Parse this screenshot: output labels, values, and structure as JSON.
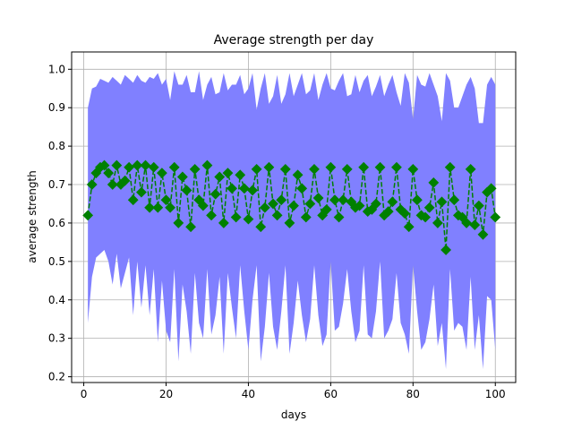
{
  "chart_data": {
    "type": "line",
    "title": "Average strength per day",
    "xlabel": "days",
    "ylabel": "average strength",
    "xlim": [
      -2.95,
      104.95
    ],
    "ylim": [
      0.185,
      1.045
    ],
    "xticks": [
      0,
      20,
      40,
      60,
      80,
      100
    ],
    "yticks": [
      0.2,
      0.3,
      0.4,
      0.5,
      0.6,
      0.7,
      0.8,
      0.9,
      1.0
    ],
    "xtick_labels": [
      "0",
      "20",
      "40",
      "60",
      "80",
      "100"
    ],
    "ytick_labels": [
      "0.2",
      "0.3",
      "0.4",
      "0.5",
      "0.6",
      "0.7",
      "0.8",
      "0.9",
      "1.0"
    ],
    "grid": true,
    "colors": {
      "band": "#8080ff",
      "line": "#008000",
      "marker": "#008000"
    },
    "x": [
      1,
      2,
      3,
      4,
      5,
      6,
      7,
      8,
      9,
      10,
      11,
      12,
      13,
      14,
      15,
      16,
      17,
      18,
      19,
      20,
      21,
      22,
      23,
      24,
      25,
      26,
      27,
      28,
      29,
      30,
      31,
      32,
      33,
      34,
      35,
      36,
      37,
      38,
      39,
      40,
      41,
      42,
      43,
      44,
      45,
      46,
      47,
      48,
      49,
      50,
      51,
      52,
      53,
      54,
      55,
      56,
      57,
      58,
      59,
      60,
      61,
      62,
      63,
      64,
      65,
      66,
      67,
      68,
      69,
      70,
      71,
      72,
      73,
      74,
      75,
      76,
      77,
      78,
      79,
      80,
      81,
      82,
      83,
      84,
      85,
      86,
      87,
      88,
      89,
      90,
      91,
      92,
      93,
      94,
      95,
      96,
      97,
      98,
      99,
      100
    ],
    "series": [
      {
        "style": "dashed-line-with-diamond-markers",
        "values": [
          0.62,
          0.7,
          0.73,
          0.745,
          0.75,
          0.73,
          0.7,
          0.75,
          0.7,
          0.71,
          0.745,
          0.66,
          0.75,
          0.68,
          0.75,
          0.64,
          0.745,
          0.64,
          0.73,
          0.66,
          0.64,
          0.745,
          0.6,
          0.72,
          0.685,
          0.59,
          0.74,
          0.66,
          0.645,
          0.75,
          0.62,
          0.675,
          0.72,
          0.6,
          0.73,
          0.69,
          0.615,
          0.725,
          0.69,
          0.61,
          0.685,
          0.74,
          0.59,
          0.64,
          0.745,
          0.65,
          0.62,
          0.66,
          0.74,
          0.6,
          0.645,
          0.725,
          0.69,
          0.615,
          0.65,
          0.74,
          0.665,
          0.62,
          0.635,
          0.745,
          0.66,
          0.615,
          0.66,
          0.74,
          0.655,
          0.64,
          0.645,
          0.745,
          0.63,
          0.635,
          0.65,
          0.745,
          0.62,
          0.63,
          0.655,
          0.745,
          0.635,
          0.625,
          0.59,
          0.74,
          0.66,
          0.62,
          0.615,
          0.64,
          0.705,
          0.6,
          0.655,
          0.53,
          0.745,
          0.66,
          0.62,
          0.615,
          0.6,
          0.74,
          0.595,
          0.645,
          0.57,
          0.68,
          0.69,
          0.615
        ]
      }
    ],
    "band": {
      "upper": [
        0.9,
        0.95,
        0.955,
        0.975,
        0.97,
        0.965,
        0.98,
        0.97,
        0.96,
        0.985,
        0.975,
        0.965,
        0.985,
        0.97,
        0.965,
        0.98,
        0.975,
        0.99,
        0.96,
        0.975,
        0.92,
        0.995,
        0.96,
        0.96,
        0.985,
        0.94,
        0.94,
        0.995,
        0.92,
        0.96,
        0.98,
        0.935,
        0.94,
        0.99,
        0.945,
        0.96,
        0.96,
        0.985,
        0.935,
        0.95,
        0.99,
        0.895,
        0.95,
        0.99,
        0.91,
        0.93,
        0.985,
        0.91,
        0.935,
        0.99,
        0.93,
        0.96,
        0.99,
        0.935,
        0.945,
        0.99,
        0.92,
        0.96,
        0.99,
        0.95,
        0.945,
        0.97,
        0.99,
        0.93,
        0.935,
        0.985,
        0.94,
        0.97,
        0.985,
        0.93,
        0.955,
        0.985,
        0.93,
        0.96,
        0.985,
        0.94,
        0.905,
        0.99,
        0.965,
        0.87,
        0.985,
        0.96,
        0.955,
        0.99,
        0.96,
        0.93,
        0.865,
        0.99,
        0.97,
        0.9,
        0.9,
        0.93,
        0.96,
        0.98,
        0.95,
        0.86,
        0.86,
        0.96,
        0.98,
        0.96
      ],
      "lower": [
        0.34,
        0.46,
        0.51,
        0.52,
        0.53,
        0.5,
        0.44,
        0.52,
        0.43,
        0.47,
        0.51,
        0.36,
        0.5,
        0.38,
        0.49,
        0.36,
        0.48,
        0.29,
        0.45,
        0.32,
        0.29,
        0.48,
        0.24,
        0.44,
        0.37,
        0.26,
        0.47,
        0.34,
        0.3,
        0.48,
        0.31,
        0.36,
        0.46,
        0.26,
        0.47,
        0.38,
        0.3,
        0.49,
        0.37,
        0.27,
        0.4,
        0.49,
        0.24,
        0.33,
        0.47,
        0.33,
        0.27,
        0.37,
        0.49,
        0.26,
        0.34,
        0.45,
        0.36,
        0.29,
        0.35,
        0.49,
        0.36,
        0.28,
        0.31,
        0.5,
        0.32,
        0.33,
        0.39,
        0.48,
        0.37,
        0.29,
        0.32,
        0.49,
        0.31,
        0.3,
        0.37,
        0.5,
        0.3,
        0.32,
        0.35,
        0.47,
        0.34,
        0.31,
        0.26,
        0.49,
        0.37,
        0.27,
        0.29,
        0.35,
        0.44,
        0.28,
        0.34,
        0.22,
        0.48,
        0.32,
        0.34,
        0.33,
        0.27,
        0.46,
        0.27,
        0.36,
        0.22,
        0.41,
        0.4,
        0.27
      ]
    }
  }
}
